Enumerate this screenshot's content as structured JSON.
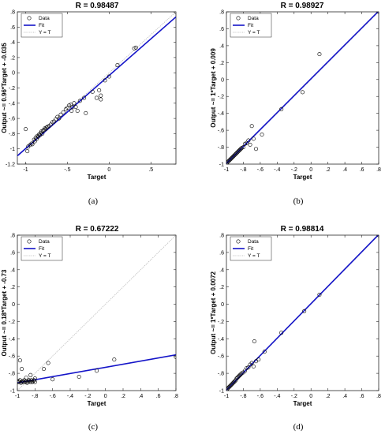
{
  "chart_data": [
    {
      "type": "scatter",
      "caption": "(a)",
      "title": "R = 0.98487",
      "xlabel": "Target",
      "ylabel": "Output ~= 0.96*Target + -0.035",
      "xlim": [
        -1.1,
        0.8
      ],
      "ylim": [
        -1.2,
        0.8
      ],
      "xticks": [
        -1,
        -0.5,
        0,
        0.5
      ],
      "yticks": [
        -1.2,
        -1,
        -0.8,
        -0.6,
        -0.4,
        -0.2,
        0,
        0.2,
        0.4,
        0.6,
        0.8
      ],
      "fit": {
        "slope": 0.96,
        "intercept": -0.035
      },
      "legend": [
        "Data",
        "Fit",
        "Y = T"
      ],
      "legend_position": "top-left",
      "grid": false,
      "points": [
        [
          -1.0,
          -1.22
        ],
        [
          -0.98,
          -1.03
        ],
        [
          -1.0,
          -0.74
        ],
        [
          -0.97,
          -0.97
        ],
        [
          -0.95,
          -0.95
        ],
        [
          -0.93,
          -0.93
        ],
        [
          -0.92,
          -0.94
        ],
        [
          -0.9,
          -0.88
        ],
        [
          -0.89,
          -0.9
        ],
        [
          -0.88,
          -0.85
        ],
        [
          -0.87,
          -0.87
        ],
        [
          -0.86,
          -0.83
        ],
        [
          -0.85,
          -0.84
        ],
        [
          -0.84,
          -0.81
        ],
        [
          -0.83,
          -0.82
        ],
        [
          -0.82,
          -0.79
        ],
        [
          -0.81,
          -0.77
        ],
        [
          -0.8,
          -0.8
        ],
        [
          -0.79,
          -0.76
        ],
        [
          -0.78,
          -0.75
        ],
        [
          -0.77,
          -0.73
        ],
        [
          -0.76,
          -0.74
        ],
        [
          -0.75,
          -0.72
        ],
        [
          -0.74,
          -0.71
        ],
        [
          -0.72,
          -0.7
        ],
        [
          -0.7,
          -0.68
        ],
        [
          -0.68,
          -0.65
        ],
        [
          -0.66,
          -0.64
        ],
        [
          -0.64,
          -0.61
        ],
        [
          -0.62,
          -0.58
        ],
        [
          -0.6,
          -0.6
        ],
        [
          -0.58,
          -0.55
        ],
        [
          -0.55,
          -0.52
        ],
        [
          -0.52,
          -0.48
        ],
        [
          -0.5,
          -0.46
        ],
        [
          -0.48,
          -0.43
        ],
        [
          -0.46,
          -0.42
        ],
        [
          -0.45,
          -0.5
        ],
        [
          -0.44,
          -0.45
        ],
        [
          -0.42,
          -0.4
        ],
        [
          -0.4,
          -0.45
        ],
        [
          -0.38,
          -0.5
        ],
        [
          -0.35,
          -0.37
        ],
        [
          -0.3,
          -0.33
        ],
        [
          -0.28,
          -0.53
        ],
        [
          -0.2,
          -0.25
        ],
        [
          -0.15,
          -0.33
        ],
        [
          -0.12,
          -0.23
        ],
        [
          -0.1,
          -0.3
        ],
        [
          -0.1,
          -0.35
        ],
        [
          -0.05,
          -0.1
        ],
        [
          0.0,
          -0.05
        ],
        [
          0.1,
          0.1
        ],
        [
          0.3,
          0.32
        ],
        [
          0.32,
          0.33
        ],
        [
          0.8,
          0.8
        ]
      ]
    },
    {
      "type": "scatter",
      "caption": "(b)",
      "title": "R = 0.98927",
      "xlabel": "Target",
      "ylabel": "Output ~= 1*Target + 0.009",
      "xlim": [
        -1.0,
        0.8
      ],
      "ylim": [
        -1.0,
        0.8
      ],
      "xticks": [
        -1,
        -0.8,
        -0.6,
        -0.4,
        -0.2,
        0,
        0.2,
        0.4,
        0.6,
        0.8
      ],
      "yticks": [
        -1,
        -0.8,
        -0.6,
        -0.4,
        -0.2,
        0,
        0.2,
        0.4,
        0.6,
        0.8
      ],
      "fit": {
        "slope": 1.0,
        "intercept": 0.009
      },
      "legend": [
        "Data",
        "Fit",
        "Y = T"
      ],
      "legend_position": "top-left",
      "grid": false,
      "points": [
        [
          -1.0,
          -0.99
        ],
        [
          -0.99,
          -0.98
        ],
        [
          -0.98,
          -0.97
        ],
        [
          -0.97,
          -0.96
        ],
        [
          -0.96,
          -0.95
        ],
        [
          -0.95,
          -0.94
        ],
        [
          -0.94,
          -0.93
        ],
        [
          -0.93,
          -0.92
        ],
        [
          -0.92,
          -0.91
        ],
        [
          -0.91,
          -0.9
        ],
        [
          -0.9,
          -0.89
        ],
        [
          -0.89,
          -0.88
        ],
        [
          -0.88,
          -0.87
        ],
        [
          -0.87,
          -0.86
        ],
        [
          -0.86,
          -0.85
        ],
        [
          -0.85,
          -0.84
        ],
        [
          -0.84,
          -0.83
        ],
        [
          -0.83,
          -0.82
        ],
        [
          -0.82,
          -0.81
        ],
        [
          -0.8,
          -0.8
        ],
        [
          -0.78,
          -0.76
        ],
        [
          -0.76,
          -0.75
        ],
        [
          -0.74,
          -0.72
        ],
        [
          -0.72,
          -0.77
        ],
        [
          -0.7,
          -0.55
        ],
        [
          -0.68,
          -0.7
        ],
        [
          -0.65,
          -0.82
        ],
        [
          -0.58,
          -0.65
        ],
        [
          -0.35,
          -0.35
        ],
        [
          -0.1,
          -0.15
        ],
        [
          0.1,
          0.3
        ],
        [
          0.8,
          0.8
        ]
      ]
    },
    {
      "type": "scatter",
      "caption": "(c)",
      "title": "R = 0.67222",
      "xlabel": "Target",
      "ylabel": "Output ~= 0.18*Target + -0.73",
      "xlim": [
        -1.0,
        0.8
      ],
      "ylim": [
        -1.0,
        0.8
      ],
      "xticks": [
        -1,
        -0.8,
        -0.6,
        -0.4,
        -0.2,
        0,
        0.2,
        0.4,
        0.6,
        0.8
      ],
      "yticks": [
        -1,
        -0.8,
        -0.6,
        -0.4,
        -0.2,
        0,
        0.2,
        0.4,
        0.6,
        0.8
      ],
      "fit": {
        "slope": 0.18,
        "intercept": -0.73
      },
      "legend": [
        "Data",
        "Fit",
        "Y = T"
      ],
      "legend_position": "top-left",
      "grid": false,
      "points": [
        [
          -1.0,
          -0.9
        ],
        [
          -0.99,
          -0.89
        ],
        [
          -0.98,
          -0.9
        ],
        [
          -0.97,
          -0.88
        ],
        [
          -0.96,
          -0.91
        ],
        [
          -0.95,
          -0.9
        ],
        [
          -0.94,
          -0.89
        ],
        [
          -0.93,
          -0.9
        ],
        [
          -0.92,
          -0.88
        ],
        [
          -0.91,
          -0.9
        ],
        [
          -0.9,
          -0.89
        ],
        [
          -0.89,
          -0.91
        ],
        [
          -0.88,
          -0.9
        ],
        [
          -0.87,
          -0.88
        ],
        [
          -0.86,
          -0.89
        ],
        [
          -0.85,
          -0.9
        ],
        [
          -0.84,
          -0.88
        ],
        [
          -0.83,
          -0.9
        ],
        [
          -0.82,
          -0.89
        ],
        [
          -0.81,
          -0.88
        ],
        [
          -0.8,
          -0.9
        ],
        [
          -0.97,
          -0.65
        ],
        [
          -0.95,
          -0.75
        ],
        [
          -0.9,
          -0.85
        ],
        [
          -0.85,
          -0.82
        ],
        [
          -0.8,
          -0.86
        ],
        [
          -0.7,
          -0.75
        ],
        [
          -0.65,
          -0.68
        ],
        [
          -0.6,
          -0.87
        ],
        [
          -0.3,
          -0.84
        ],
        [
          -0.1,
          -0.77
        ],
        [
          0.1,
          -0.64
        ],
        [
          0.8,
          -0.61
        ]
      ]
    },
    {
      "type": "scatter",
      "caption": "(d)",
      "title": "R = 0.98814",
      "xlabel": "Target",
      "ylabel": "Output ~= 1*Target + 0.0072",
      "xlim": [
        -1.0,
        0.8
      ],
      "ylim": [
        -1.0,
        0.8
      ],
      "xticks": [
        -1,
        -0.8,
        -0.6,
        -0.4,
        -0.2,
        0,
        0.2,
        0.4,
        0.6,
        0.8
      ],
      "yticks": [
        -1,
        -0.8,
        -0.6,
        -0.4,
        -0.2,
        0,
        0.2,
        0.4,
        0.6,
        0.8
      ],
      "fit": {
        "slope": 1.0,
        "intercept": 0.0072
      },
      "legend": [
        "Data",
        "Fit",
        "Y = T"
      ],
      "legend_position": "top-left",
      "grid": false,
      "points": [
        [
          -1.0,
          -0.99
        ],
        [
          -0.99,
          -0.98
        ],
        [
          -0.98,
          -0.97
        ],
        [
          -0.97,
          -0.96
        ],
        [
          -0.96,
          -0.95
        ],
        [
          -0.95,
          -0.94
        ],
        [
          -0.94,
          -0.93
        ],
        [
          -0.93,
          -0.92
        ],
        [
          -0.92,
          -0.91
        ],
        [
          -0.91,
          -0.9
        ],
        [
          -0.9,
          -0.89
        ],
        [
          -0.89,
          -0.88
        ],
        [
          -0.88,
          -0.86
        ],
        [
          -0.87,
          -0.85
        ],
        [
          -0.86,
          -0.84
        ],
        [
          -0.85,
          -0.83
        ],
        [
          -0.84,
          -0.82
        ],
        [
          -0.83,
          -0.81
        ],
        [
          -0.82,
          -0.8
        ],
        [
          -0.8,
          -0.79
        ],
        [
          -0.78,
          -0.77
        ],
        [
          -0.76,
          -0.74
        ],
        [
          -0.74,
          -0.73
        ],
        [
          -0.72,
          -0.7
        ],
        [
          -0.7,
          -0.68
        ],
        [
          -0.68,
          -0.72
        ],
        [
          -0.67,
          -0.43
        ],
        [
          -0.65,
          -0.66
        ],
        [
          -0.62,
          -0.64
        ],
        [
          -0.55,
          -0.55
        ],
        [
          -0.35,
          -0.33
        ],
        [
          -0.08,
          -0.08
        ],
        [
          0.1,
          0.11
        ],
        [
          0.8,
          0.8
        ]
      ]
    }
  ],
  "colors": {
    "fit": "#1414c8",
    "identity": "#b4b4b4",
    "marker": "#000000"
  }
}
